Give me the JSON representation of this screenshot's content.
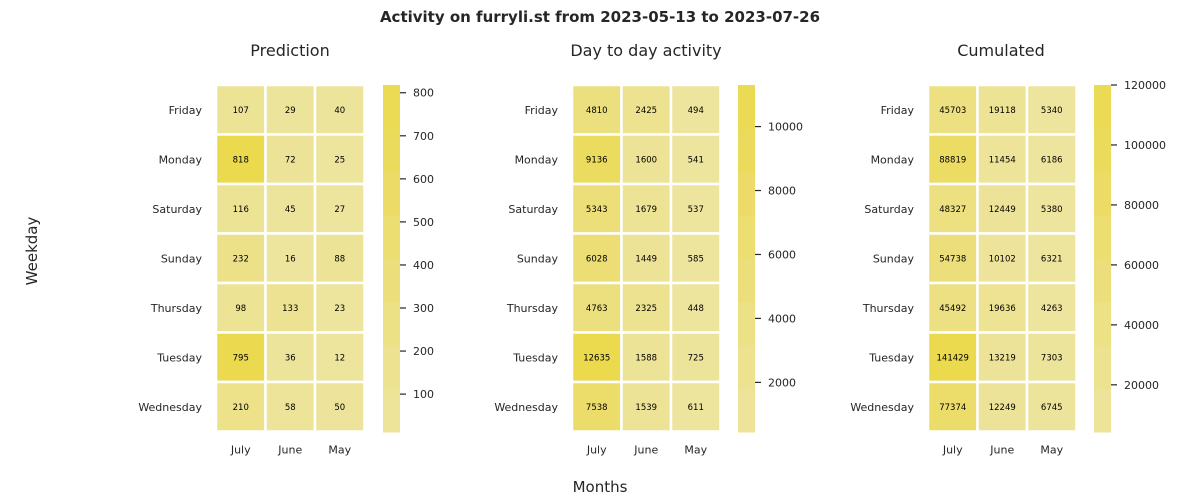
{
  "suptitle": "Activity on furryli.st from 2023-05-13 to 2023-07-26",
  "xlabel": "Months",
  "ylabel": "Weekday",
  "colors": {
    "low": "#ede49e",
    "high": "#ebd94e",
    "grid": "#ffffff",
    "text": "#262626"
  },
  "chart_data": [
    {
      "type": "heatmap",
      "title": "Prediction",
      "categories": [
        "July",
        "June",
        "May"
      ],
      "rows": [
        "Friday",
        "Monday",
        "Saturday",
        "Sunday",
        "Thursday",
        "Tuesday",
        "Wednesday"
      ],
      "values": [
        [
          107,
          29,
          40
        ],
        [
          818,
          72,
          25
        ],
        [
          116,
          45,
          27
        ],
        [
          232,
          16,
          88
        ],
        [
          98,
          133,
          23
        ],
        [
          795,
          36,
          12
        ],
        [
          210,
          58,
          50
        ]
      ],
      "colorbar": {
        "min": 12,
        "max": 818,
        "ticks": [
          100,
          200,
          300,
          400,
          500,
          600,
          700,
          800
        ]
      }
    },
    {
      "type": "heatmap",
      "title": "Day to day activity",
      "categories": [
        "July",
        "June",
        "May"
      ],
      "rows": [
        "Friday",
        "Monday",
        "Saturday",
        "Sunday",
        "Thursday",
        "Tuesday",
        "Wednesday"
      ],
      "values": [
        [
          4810,
          2425,
          494
        ],
        [
          9136,
          1600,
          541
        ],
        [
          5343,
          1679,
          537
        ],
        [
          6028,
          1449,
          585
        ],
        [
          4763,
          2325,
          448
        ],
        [
          12635,
          1588,
          725
        ],
        [
          7538,
          1539,
          611
        ]
      ],
      "colorbar": {
        "min": 448,
        "max": 11300,
        "ticks": [
          2000,
          4000,
          6000,
          8000,
          10000
        ]
      }
    },
    {
      "type": "heatmap",
      "title": "Cumulated",
      "categories": [
        "July",
        "June",
        "May"
      ],
      "rows": [
        "Friday",
        "Monday",
        "Saturday",
        "Sunday",
        "Thursday",
        "Tuesday",
        "Wednesday"
      ],
      "values": [
        [
          45703,
          19118,
          5340
        ],
        [
          88819,
          11454,
          6186
        ],
        [
          48327,
          12449,
          5380
        ],
        [
          54738,
          10102,
          6321
        ],
        [
          45492,
          19636,
          4263
        ],
        [
          141429,
          13219,
          7303
        ],
        [
          77374,
          12249,
          6745
        ]
      ],
      "colorbar": {
        "min": 4263,
        "max": 120000,
        "ticks": [
          20000,
          40000,
          60000,
          80000,
          100000,
          120000
        ]
      }
    }
  ]
}
